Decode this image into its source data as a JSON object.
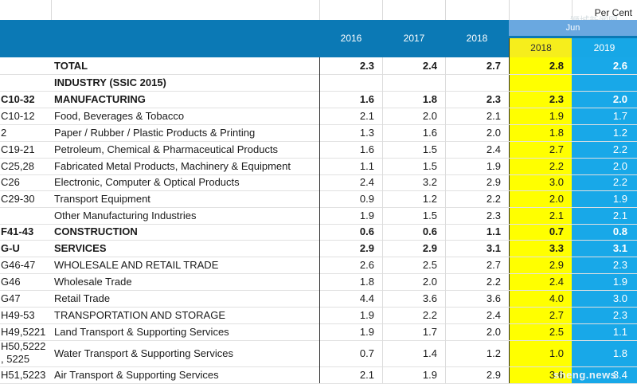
{
  "corner_label": "Per Cent",
  "watermark_top": "狮城新闻网",
  "watermark_bottom": "sheng.news",
  "header": {
    "years": [
      "2016",
      "2017",
      "2018"
    ],
    "jun_label": "Jun",
    "jun_years": [
      "2018",
      "2019"
    ]
  },
  "rows": [
    {
      "code": "",
      "label": "TOTAL",
      "bold": true,
      "v2016": "2.3",
      "v2017": "2.4",
      "v2018": "2.7",
      "jun2018": "2.8",
      "jun2019": "2.6"
    },
    {
      "code": "",
      "label": "INDUSTRY (SSIC 2015)",
      "bold": true,
      "v2016": "",
      "v2017": "",
      "v2018": "",
      "jun2018": "",
      "jun2019": ""
    },
    {
      "code": "C10-32",
      "label": "MANUFACTURING",
      "bold": true,
      "v2016": "1.6",
      "v2017": "1.8",
      "v2018": "2.3",
      "jun2018": "2.3",
      "jun2019": "2.0"
    },
    {
      "code": "C10-12",
      "label": "Food, Beverages & Tobacco",
      "bold": false,
      "v2016": "2.1",
      "v2017": "2.0",
      "v2018": "2.1",
      "jun2018": "1.9",
      "jun2019": "1.7"
    },
    {
      "code": "2",
      "label": "Paper / Rubber / Plastic Products & Printing",
      "bold": false,
      "v2016": "1.3",
      "v2017": "1.6",
      "v2018": "2.0",
      "jun2018": "1.8",
      "jun2019": "1.2"
    },
    {
      "code": "C19-21",
      "label": "Petroleum, Chemical & Pharmaceutical Products",
      "bold": false,
      "v2016": "1.6",
      "v2017": "1.5",
      "v2018": "2.4",
      "jun2018": "2.7",
      "jun2019": "2.2"
    },
    {
      "code": "C25,28",
      "label": "Fabricated Metal Products, Machinery & Equipment",
      "bold": false,
      "v2016": "1.1",
      "v2017": "1.5",
      "v2018": "1.9",
      "jun2018": "2.2",
      "jun2019": "2.0"
    },
    {
      "code": "C26",
      "label": "Electronic, Computer & Optical Products",
      "bold": false,
      "v2016": "2.4",
      "v2017": "3.2",
      "v2018": "2.9",
      "jun2018": "3.0",
      "jun2019": "2.2"
    },
    {
      "code": "C29-30",
      "label": "Transport Equipment",
      "bold": false,
      "v2016": "0.9",
      "v2017": "1.2",
      "v2018": "2.2",
      "jun2018": "2.0",
      "jun2019": "1.9"
    },
    {
      "code": "",
      "label": "Other Manufacturing Industries",
      "bold": false,
      "v2016": "1.9",
      "v2017": "1.5",
      "v2018": "2.3",
      "jun2018": "2.1",
      "jun2019": "2.1"
    },
    {
      "code": "F41-43",
      "label": "CONSTRUCTION",
      "bold": true,
      "v2016": "0.6",
      "v2017": "0.6",
      "v2018": "1.1",
      "jun2018": "0.7",
      "jun2019": "0.8"
    },
    {
      "code": "G-U",
      "label": "SERVICES",
      "bold": true,
      "v2016": "2.9",
      "v2017": "2.9",
      "v2018": "3.1",
      "jun2018": "3.3",
      "jun2019": "3.1"
    },
    {
      "code": "G46-47",
      "label": "WHOLESALE AND RETAIL TRADE",
      "bold": false,
      "v2016": "2.6",
      "v2017": "2.5",
      "v2018": "2.7",
      "jun2018": "2.9",
      "jun2019": "2.3"
    },
    {
      "code": "G46",
      "label": "Wholesale Trade",
      "bold": false,
      "v2016": "1.8",
      "v2017": "2.0",
      "v2018": "2.2",
      "jun2018": "2.4",
      "jun2019": "1.9"
    },
    {
      "code": "G47",
      "label": "Retail Trade",
      "bold": false,
      "v2016": "4.4",
      "v2017": "3.6",
      "v2018": "3.6",
      "jun2018": "4.0",
      "jun2019": "3.0"
    },
    {
      "code": "H49-53",
      "label": "TRANSPORTATION AND STORAGE",
      "bold": false,
      "v2016": "1.9",
      "v2017": "2.2",
      "v2018": "2.4",
      "jun2018": "2.7",
      "jun2019": "2.3"
    },
    {
      "code": "H49,5221",
      "label": "Land Transport & Supporting Services",
      "bold": false,
      "v2016": "1.9",
      "v2017": "1.7",
      "v2018": "2.0",
      "jun2018": "2.5",
      "jun2019": "1.1"
    },
    {
      "code": "H50,5222\n, 5225",
      "label": "Water Transport & Supporting Services",
      "bold": false,
      "v2016": "0.7",
      "v2017": "1.4",
      "v2018": "1.2",
      "jun2018": "1.0",
      "jun2019": "1.8"
    },
    {
      "code": "H51,5223",
      "label": "Air Transport & Supporting Services",
      "bold": false,
      "v2016": "2.1",
      "v2017": "1.9",
      "v2018": "2.9",
      "jun2018": "3.6",
      "jun2019": "3.4"
    }
  ]
}
